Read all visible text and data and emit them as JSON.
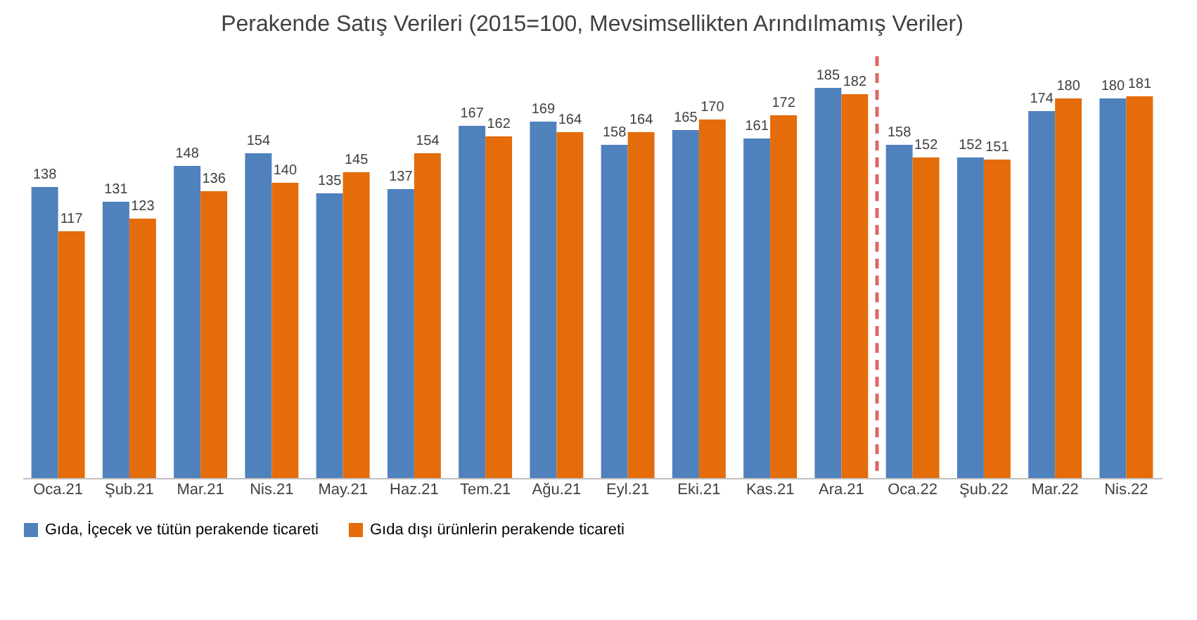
{
  "chart_data": {
    "type": "bar",
    "title": "Perakende Satış Verileri (2015=100, Mevsimsellikten Arındılmamış Veriler)",
    "categories": [
      "Oca.21",
      "Şub.21",
      "Mar.21",
      "Nis.21",
      "May.21",
      "Haz.21",
      "Tem.21",
      "Ağu.21",
      "Eyl.21",
      "Eki.21",
      "Kas.21",
      "Ara.21",
      "Oca.22",
      "Şub.22",
      "Mar.22",
      "Nis.22"
    ],
    "series": [
      {
        "name": "Gıda, İçecek ve tütün perakende ticareti",
        "color": "#4f81bd",
        "values": [
          138,
          131,
          148,
          154,
          135,
          137,
          167,
          169,
          158,
          165,
          161,
          185,
          158,
          152,
          174,
          180
        ]
      },
      {
        "name": "Gıda dışı ürünlerin perakende ticareti",
        "color": "#e46c0a",
        "values": [
          117,
          123,
          136,
          140,
          145,
          154,
          162,
          164,
          164,
          170,
          172,
          182,
          152,
          151,
          180,
          181
        ]
      }
    ],
    "data_labels": true,
    "grid": false,
    "legend": "bottom",
    "ref_lines": [
      {
        "axis": "x",
        "value": "Oca.22",
        "color": "#e06666",
        "line_style": "dashed"
      }
    ]
  }
}
